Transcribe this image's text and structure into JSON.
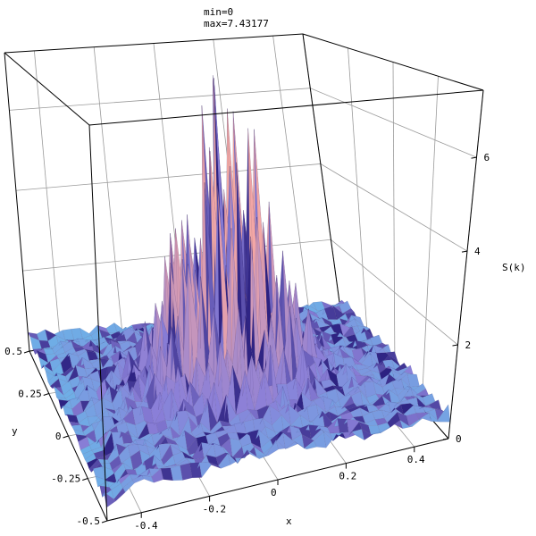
{
  "chart_data": {
    "type": "surface3d",
    "annotation": {
      "min_text": "min=0",
      "max_text": "max=7.43177"
    },
    "z_min": 0,
    "z_max": 7.43177,
    "xlabel": "x",
    "ylabel": "y",
    "zlabel": "S(k)",
    "xlim": [
      -0.5,
      0.5
    ],
    "ylim": [
      -0.5,
      0.5
    ],
    "zlim": [
      0,
      7.43177
    ],
    "x_ticks": [
      {
        "value": -0.4,
        "label": "-0.4"
      },
      {
        "value": -0.2,
        "label": "-0.2"
      },
      {
        "value": 0,
        "label": "0"
      },
      {
        "value": 0.2,
        "label": "0.2"
      },
      {
        "value": 0.4,
        "label": "0.4"
      }
    ],
    "y_ticks": [
      {
        "value": -0.5,
        "label": "-0.5"
      },
      {
        "value": -0.25,
        "label": "-0.25"
      },
      {
        "value": 0,
        "label": "0"
      },
      {
        "value": 0.25,
        "label": "0.25"
      },
      {
        "value": 0.5,
        "label": "0.5"
      }
    ],
    "z_ticks": [
      {
        "value": 0,
        "label": "0"
      },
      {
        "value": 2,
        "label": "2"
      },
      {
        "value": 4,
        "label": "4"
      },
      {
        "value": 6,
        "label": "6"
      }
    ],
    "grid": true,
    "colors": {
      "low": "#5fc8ee",
      "mid": "#8a7fd8",
      "dark": "#2b2080",
      "high": "#f2a6a6",
      "peak": "#f7c9a0",
      "box": "#000000",
      "gridline": "#9a9a9a"
    }
  }
}
